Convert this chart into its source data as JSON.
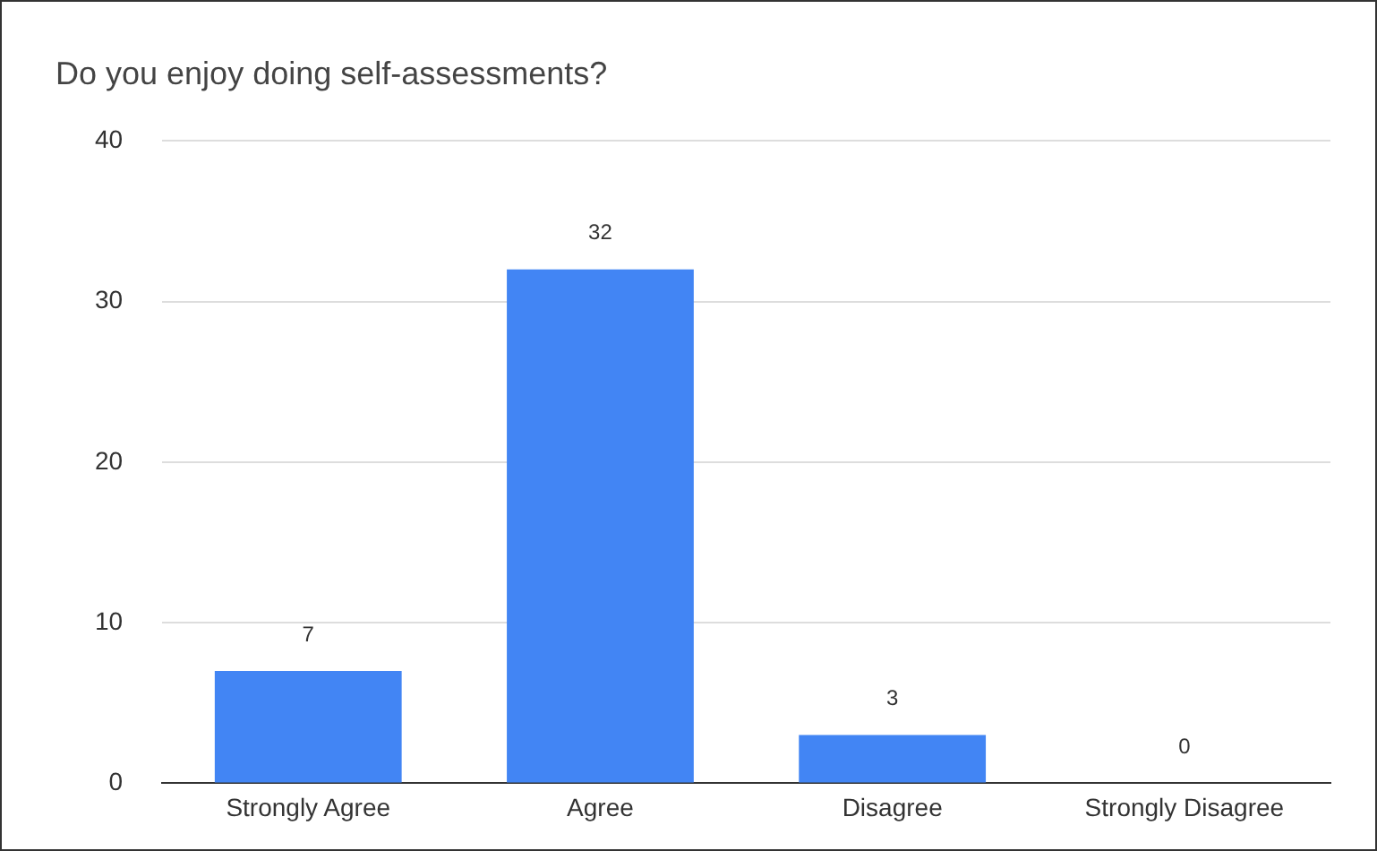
{
  "chart_data": {
    "type": "bar",
    "title": "Do you enjoy doing self-assessments?",
    "categories": [
      "Strongly Agree",
      "Agree",
      "Disagree",
      "Strongly Disagree"
    ],
    "values": [
      7,
      32,
      3,
      0
    ],
    "color": "#4285f4",
    "ylim": [
      0,
      40
    ],
    "yticks": [
      0,
      10,
      20,
      30,
      40
    ],
    "grid": "y",
    "data_labels": true
  }
}
